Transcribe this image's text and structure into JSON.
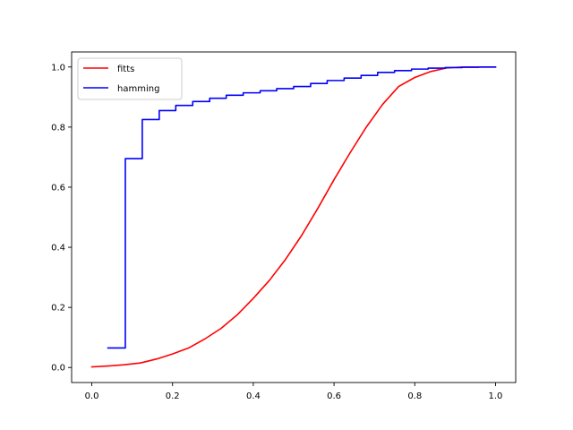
{
  "chart_data": {
    "type": "line",
    "title": "",
    "xlabel": "",
    "ylabel": "",
    "xlim": [
      -0.05,
      1.05
    ],
    "ylim": [
      -0.05,
      1.05
    ],
    "xticks": [
      0.0,
      0.2,
      0.4,
      0.6,
      0.8,
      1.0
    ],
    "yticks": [
      0.0,
      0.2,
      0.4,
      0.6,
      0.8,
      1.0
    ],
    "xtick_labels": [
      "0.0",
      "0.2",
      "0.4",
      "0.6",
      "0.8",
      "1.0"
    ],
    "ytick_labels": [
      "0.0",
      "0.2",
      "0.4",
      "0.6",
      "0.8",
      "1.0"
    ],
    "grid": false,
    "legend": {
      "placement": "top-left",
      "entries": [
        {
          "label": "fitts",
          "color": "#ff0000"
        },
        {
          "label": "hamming",
          "color": "#0000ff"
        }
      ]
    },
    "series": [
      {
        "name": "fitts",
        "color": "#ff0000",
        "step": false,
        "points": [
          [
            0.0,
            0.002
          ],
          [
            0.04,
            0.005
          ],
          [
            0.08,
            0.009
          ],
          [
            0.12,
            0.015
          ],
          [
            0.16,
            0.028
          ],
          [
            0.2,
            0.045
          ],
          [
            0.24,
            0.065
          ],
          [
            0.28,
            0.095
          ],
          [
            0.32,
            0.13
          ],
          [
            0.36,
            0.175
          ],
          [
            0.4,
            0.23
          ],
          [
            0.44,
            0.29
          ],
          [
            0.48,
            0.36
          ],
          [
            0.52,
            0.44
          ],
          [
            0.56,
            0.53
          ],
          [
            0.6,
            0.625
          ],
          [
            0.64,
            0.715
          ],
          [
            0.68,
            0.8
          ],
          [
            0.72,
            0.875
          ],
          [
            0.76,
            0.935
          ],
          [
            0.8,
            0.965
          ],
          [
            0.84,
            0.985
          ],
          [
            0.88,
            0.997
          ],
          [
            0.92,
            1.0
          ],
          [
            1.0,
            1.0
          ]
        ]
      },
      {
        "name": "hamming",
        "color": "#0000ff",
        "step": true,
        "points": [
          [
            0.04,
            0.065
          ],
          [
            0.083,
            0.695
          ],
          [
            0.125,
            0.825
          ],
          [
            0.167,
            0.855
          ],
          [
            0.208,
            0.872
          ],
          [
            0.25,
            0.885
          ],
          [
            0.292,
            0.896
          ],
          [
            0.333,
            0.906
          ],
          [
            0.375,
            0.914
          ],
          [
            0.417,
            0.921
          ],
          [
            0.458,
            0.928
          ],
          [
            0.5,
            0.935
          ],
          [
            0.542,
            0.945
          ],
          [
            0.583,
            0.955
          ],
          [
            0.625,
            0.963
          ],
          [
            0.667,
            0.972
          ],
          [
            0.708,
            0.982
          ],
          [
            0.75,
            0.988
          ],
          [
            0.792,
            0.993
          ],
          [
            0.833,
            0.996
          ],
          [
            0.875,
            0.998
          ],
          [
            0.917,
            0.999
          ],
          [
            0.958,
            1.0
          ],
          [
            1.0,
            1.0
          ]
        ]
      }
    ]
  }
}
